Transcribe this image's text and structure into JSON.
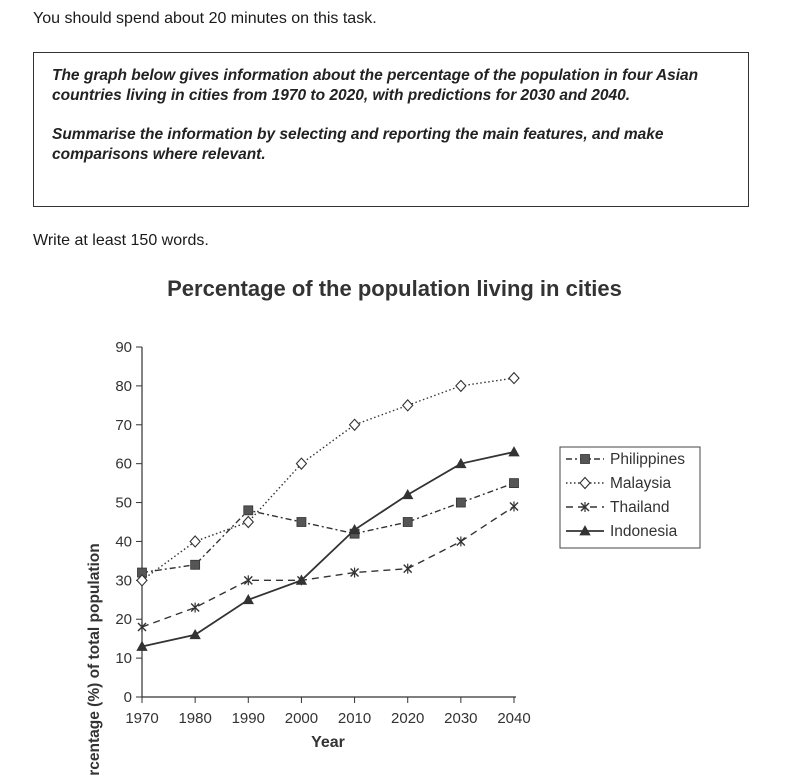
{
  "instructions": {
    "time_note": "You should spend about 20 minutes on this task.",
    "task_paragraph_1": "The graph below gives information about the percentage of the population in four Asian countries living in cities from 1970 to 2020, with predictions for 2030 and 2040.",
    "task_paragraph_2": "Summarise the information by selecting and reporting the main features, and make comparisons where relevant.",
    "word_count_note": "Write at least 150 words."
  },
  "chart_data": {
    "type": "line",
    "title": "Percentage of the population living in cities",
    "xlabel": "Year",
    "ylabel": "Percentage (%) of total population",
    "x": [
      1970,
      1980,
      1990,
      2000,
      2010,
      2020,
      2030,
      2040
    ],
    "ylim": [
      0,
      90
    ],
    "yticks": [
      0,
      10,
      20,
      30,
      40,
      50,
      60,
      70,
      80,
      90
    ],
    "grid": false,
    "legend_position": "right",
    "series": [
      {
        "name": "Philippines",
        "values": [
          32,
          34,
          48,
          45,
          42,
          45,
          50,
          55
        ],
        "marker": "square",
        "line_style": "dash-dot",
        "color": "#333333"
      },
      {
        "name": "Malaysia",
        "values": [
          30,
          40,
          45,
          60,
          70,
          75,
          80,
          82
        ],
        "marker": "diamond",
        "line_style": "dotted",
        "color": "#333333"
      },
      {
        "name": "Thailand",
        "values": [
          18,
          23,
          30,
          30,
          32,
          33,
          40,
          49
        ],
        "marker": "x",
        "line_style": "dashed",
        "color": "#333333"
      },
      {
        "name": "Indonesia",
        "values": [
          13,
          16,
          25,
          30,
          43,
          52,
          60,
          63
        ],
        "marker": "triangle",
        "line_style": "solid",
        "color": "#333333"
      }
    ]
  }
}
